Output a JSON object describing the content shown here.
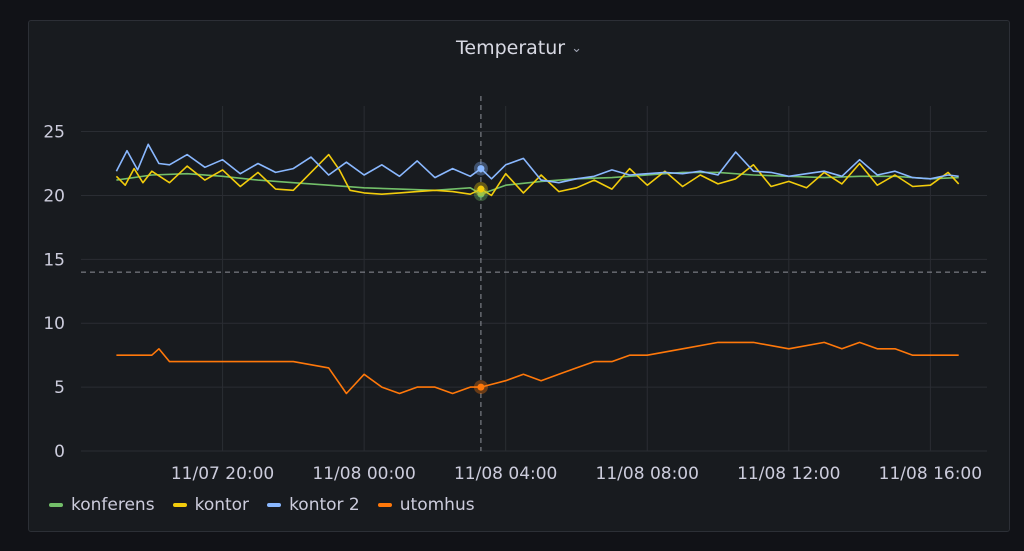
{
  "panel": {
    "title": "Temperatur",
    "menu_icon": "chevron-down-icon"
  },
  "chart_data": {
    "type": "line",
    "title": "Temperatur",
    "ylim": [
      0,
      27
    ],
    "yticks": [
      0,
      5,
      10,
      15,
      20,
      25
    ],
    "x_range": [
      "11/07 17:00",
      "11/08 16:45"
    ],
    "xtick_labels": [
      "11/07 20:00",
      "11/08 00:00",
      "11/08 04:00",
      "11/08 08:00",
      "11/08 12:00",
      "11/08 16:00"
    ],
    "xtick_hours": [
      3,
      7,
      11,
      15,
      19,
      23
    ],
    "threshold": 14,
    "crosshair_hour": 10.3,
    "grid": true,
    "legend_position": "bottom-left",
    "series": [
      {
        "name": "konferens",
        "color": "#73bf69",
        "hours": [
          0,
          1,
          2,
          3,
          4,
          5,
          6,
          7,
          8,
          9,
          10,
          10.3,
          11,
          12,
          13,
          14,
          15,
          16,
          17,
          18,
          19,
          20,
          21,
          22,
          23,
          23.8
        ],
        "values": [
          21.2,
          21.6,
          21.7,
          21.5,
          21.2,
          21.0,
          20.8,
          20.6,
          20.5,
          20.4,
          20.6,
          20.1,
          20.8,
          21.1,
          21.3,
          21.4,
          21.6,
          21.8,
          21.8,
          21.6,
          21.5,
          21.4,
          21.5,
          21.5,
          21.3,
          21.4
        ]
      },
      {
        "name": "kontor",
        "color": "#f2cc0c",
        "hours": [
          0,
          0.25,
          0.5,
          0.75,
          1,
          1.5,
          2,
          2.5,
          3,
          3.5,
          4,
          4.5,
          5,
          5.5,
          6,
          6.3,
          6.6,
          7,
          7.5,
          8,
          8.5,
          9,
          9.5,
          10,
          10.3,
          10.6,
          11,
          11.5,
          12,
          12.5,
          13,
          13.5,
          14,
          14.5,
          15,
          15.5,
          16,
          16.5,
          17,
          17.5,
          18,
          18.5,
          19,
          19.5,
          20,
          20.5,
          21,
          21.5,
          22,
          22.5,
          23,
          23.5,
          23.8
        ],
        "values": [
          21.5,
          20.8,
          22.1,
          21.0,
          21.9,
          21.0,
          22.3,
          21.2,
          22.0,
          20.7,
          21.8,
          20.5,
          20.4,
          21.8,
          23.2,
          22.0,
          20.4,
          20.2,
          20.1,
          20.2,
          20.3,
          20.4,
          20.3,
          20.1,
          20.5,
          20.0,
          21.7,
          20.2,
          21.6,
          20.3,
          20.6,
          21.2,
          20.5,
          22.1,
          20.8,
          21.9,
          20.7,
          21.6,
          20.9,
          21.3,
          22.4,
          20.7,
          21.1,
          20.6,
          21.8,
          20.9,
          22.5,
          20.8,
          21.6,
          20.7,
          20.8,
          21.8,
          20.9
        ]
      },
      {
        "name": "kontor 2",
        "color": "#8ab8ff",
        "hours": [
          0,
          0.3,
          0.6,
          0.9,
          1.2,
          1.5,
          2,
          2.5,
          3,
          3.5,
          4,
          4.5,
          5,
          5.5,
          6,
          6.5,
          7,
          7.5,
          8,
          8.5,
          9,
          9.5,
          10,
          10.3,
          10.6,
          11,
          11.5,
          12,
          12.5,
          13,
          13.5,
          14,
          14.5,
          15,
          15.5,
          16,
          16.5,
          17,
          17.5,
          18,
          18.5,
          19,
          19.5,
          20,
          20.5,
          21,
          21.5,
          22,
          22.5,
          23,
          23.5,
          23.8
        ],
        "values": [
          21.9,
          23.5,
          22.0,
          24.0,
          22.5,
          22.4,
          23.2,
          22.2,
          22.8,
          21.7,
          22.5,
          21.8,
          22.1,
          23.0,
          21.6,
          22.6,
          21.6,
          22.4,
          21.5,
          22.7,
          21.4,
          22.1,
          21.5,
          22.1,
          21.3,
          22.4,
          22.9,
          21.2,
          21.0,
          21.3,
          21.5,
          22.0,
          21.6,
          21.7,
          21.8,
          21.7,
          21.9,
          21.6,
          23.4,
          21.9,
          21.8,
          21.5,
          21.7,
          21.9,
          21.5,
          22.8,
          21.6,
          21.9,
          21.4,
          21.3,
          21.6,
          21.5
        ]
      },
      {
        "name": "utomhus",
        "color": "#ff780a",
        "hours": [
          0,
          1,
          1.2,
          1.5,
          2.5,
          5,
          6,
          6.5,
          7,
          7.5,
          8,
          8.5,
          9,
          9.5,
          10,
          10.3,
          11,
          11.5,
          12,
          12.5,
          13,
          13.5,
          14,
          14.5,
          15,
          16,
          17,
          18,
          19,
          20,
          20.5,
          21,
          21.5,
          22,
          22.5,
          23,
          23.8
        ],
        "values": [
          7.5,
          7.5,
          8.0,
          7.0,
          7.0,
          7.0,
          6.5,
          4.5,
          6.0,
          5.0,
          4.5,
          5.0,
          5.0,
          4.5,
          5.0,
          5.0,
          5.5,
          6.0,
          5.5,
          6.0,
          6.5,
          7.0,
          7.0,
          7.5,
          7.5,
          8.0,
          8.5,
          8.5,
          8.0,
          8.5,
          8.0,
          8.5,
          8.0,
          8.0,
          7.5,
          7.5,
          7.5
        ]
      }
    ]
  },
  "legend": [
    "konferens",
    "kontor",
    "kontor 2",
    "utomhus"
  ]
}
